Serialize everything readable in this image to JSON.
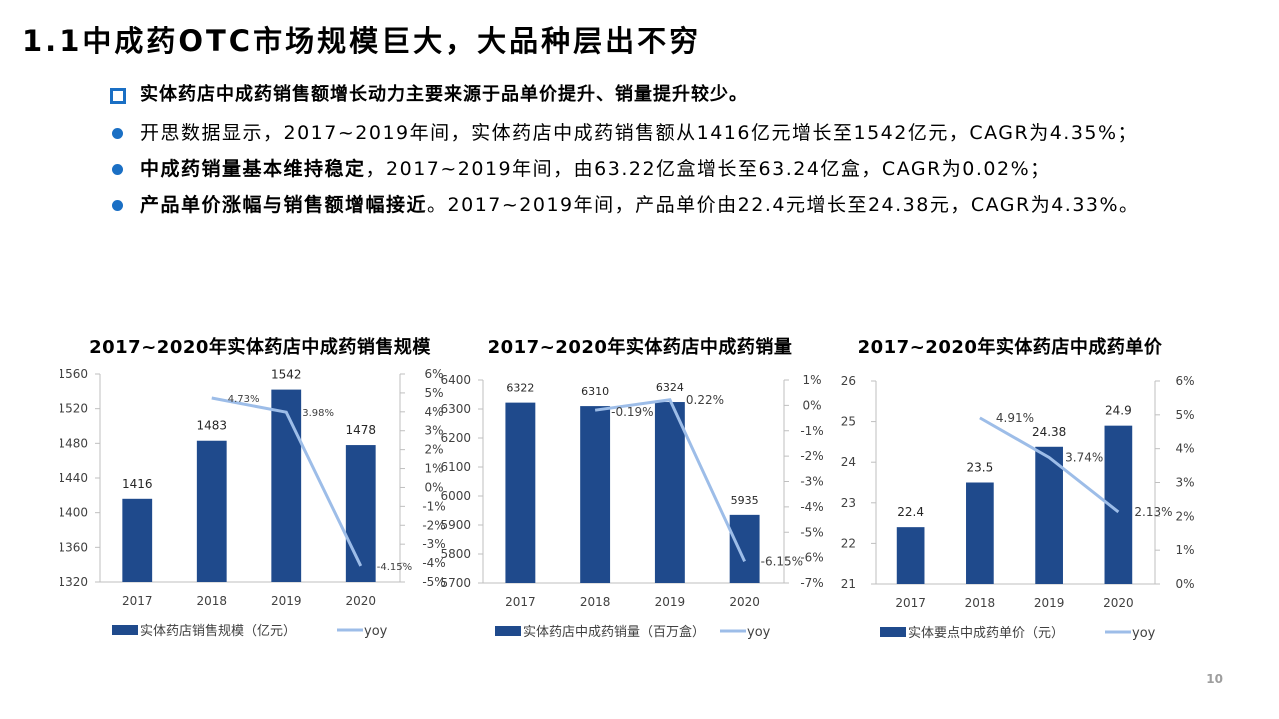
{
  "slide": {
    "title": "1.1中成药OTC市场规模巨大，大品种层出不穷",
    "page_number": "10"
  },
  "bullets": {
    "headline": "实体药店中成药销售额增长动力主要来源于品单价提升、销量提升较少。",
    "items": [
      {
        "strong": "",
        "text": "开思数据显示，2017~2019年间，实体药店中成药销售额从1416亿元增长至1542亿元，CAGR为4.35%；"
      },
      {
        "strong": "中成药销量基本维持稳定",
        "text": "，2017~2019年间，由63.22亿盒增长至63.24亿盒，CAGR为0.02%；"
      },
      {
        "strong": "产品单价涨幅与销售额增幅接近",
        "text": "。2017~2019年间，产品单价由22.4元增长至24.38元，CAGR为4.33%。"
      }
    ]
  },
  "colors": {
    "bar": "#1f4a8c",
    "line": "#9dbde8",
    "axis": "#bfbfbf",
    "tick_text": "#404040",
    "bullet": "#1a6fc4"
  },
  "chart_data": [
    {
      "type": "bar+line",
      "title": "2017~2020年实体药店中成药销售规模",
      "categories": [
        "2017",
        "2018",
        "2019",
        "2020"
      ],
      "series": [
        {
          "name": "实体药店销售规模（亿元）",
          "type": "bar",
          "axis": "left",
          "values": [
            1416,
            1483,
            1542,
            1478
          ],
          "labels": [
            "1416",
            "1483",
            "1542",
            "1478"
          ]
        },
        {
          "name": "yoy",
          "type": "line",
          "axis": "right",
          "x_index": [
            1,
            2,
            3
          ],
          "values": [
            4.73,
            3.98,
            -4.15
          ],
          "labels": [
            "4.73%",
            "3.98%",
            "-4.15%"
          ]
        }
      ],
      "left_axis": {
        "min": 1320,
        "max": 1560,
        "step": 40,
        "ticks": [
          "1560",
          "1520",
          "1480",
          "1440",
          "1400",
          "1360",
          "1320"
        ]
      },
      "right_axis": {
        "min": -5,
        "max": 6,
        "step": 1,
        "ticks": [
          "6%",
          "5%",
          "4%",
          "3%",
          "2%",
          "1%",
          "0%",
          "-1%",
          "-2%",
          "-3%",
          "-4%",
          "-5%"
        ]
      },
      "legend": {
        "bar": "实体药店销售规模（亿元）",
        "line": "yoy",
        "position": "bottom"
      }
    },
    {
      "type": "bar+line",
      "title": "2017~2020年实体药店中成药销量",
      "categories": [
        "2017",
        "2018",
        "2019",
        "2020"
      ],
      "series": [
        {
          "name": "实体药店中成药销量（百万盒）",
          "type": "bar",
          "axis": "left",
          "values": [
            6322,
            6310,
            6324,
            5935
          ],
          "labels": [
            "6322",
            "6310",
            "6324",
            "5935"
          ]
        },
        {
          "name": "yoy",
          "type": "line",
          "axis": "right",
          "x_index": [
            1,
            2,
            3
          ],
          "values": [
            -0.19,
            0.22,
            -6.15
          ],
          "labels": [
            "-0.19%",
            "0.22%",
            "-6.15%"
          ]
        }
      ],
      "left_axis": {
        "min": 5700,
        "max": 6400,
        "step": 100,
        "ticks": [
          "6400",
          "6300",
          "6200",
          "6100",
          "6000",
          "5900",
          "5800",
          "5700"
        ]
      },
      "right_axis": {
        "min": -7,
        "max": 1,
        "step": 1,
        "ticks": [
          "1%",
          "0%",
          "-1%",
          "-2%",
          "-3%",
          "-4%",
          "-5%",
          "-6%",
          "-7%"
        ]
      },
      "legend": {
        "bar": "实体药店中成药销量（百万盒）",
        "line": "yoy",
        "position": "bottom"
      }
    },
    {
      "type": "bar+line",
      "title": "2017~2020年实体药店中成药单价",
      "categories": [
        "2017",
        "2018",
        "2019",
        "2020"
      ],
      "series": [
        {
          "name": "实体要点中成药单价（元）",
          "type": "bar",
          "axis": "left",
          "values": [
            22.4,
            23.5,
            24.38,
            24.9
          ],
          "labels": [
            "22.4",
            "23.5",
            "24.38",
            "24.9"
          ]
        },
        {
          "name": "yoy",
          "type": "line",
          "axis": "right",
          "x_index": [
            1,
            2,
            3
          ],
          "values": [
            4.91,
            3.74,
            2.13
          ],
          "labels": [
            "4.91%",
            "3.74%",
            "2.13%"
          ]
        }
      ],
      "left_axis": {
        "min": 21,
        "max": 26,
        "step": 1,
        "ticks": [
          "26",
          "25",
          "24",
          "23",
          "22",
          "21"
        ]
      },
      "right_axis": {
        "min": 0,
        "max": 6,
        "step": 1,
        "ticks": [
          "6%",
          "5%",
          "4%",
          "3%",
          "2%",
          "1%",
          "0%"
        ]
      },
      "legend": {
        "bar": "实体要点中成药单价（元）",
        "line": "yoy",
        "position": "bottom"
      }
    }
  ]
}
